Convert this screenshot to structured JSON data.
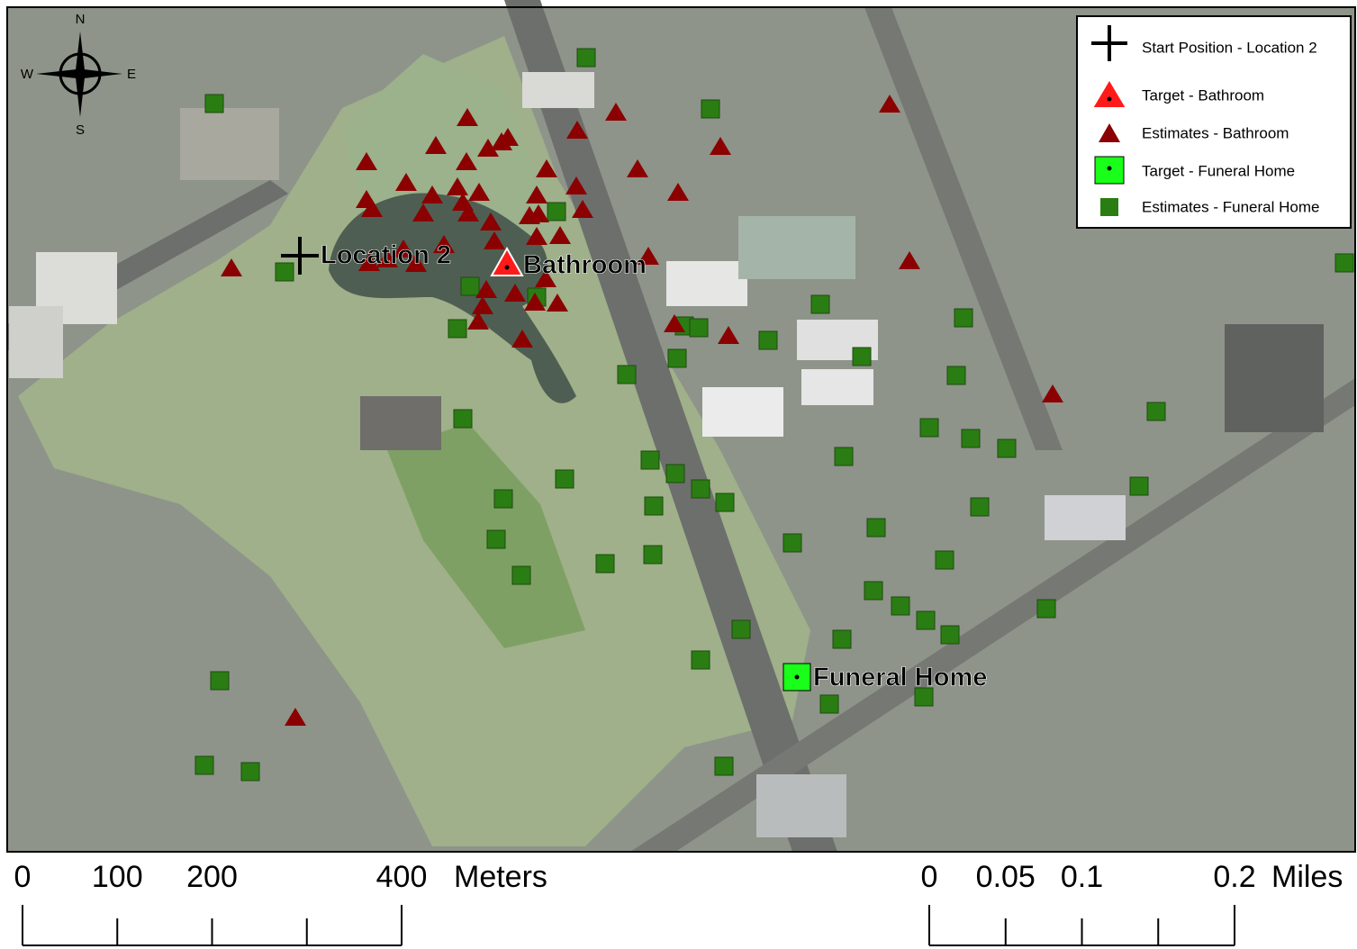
{
  "compass": {
    "north": "N",
    "south": "S",
    "east": "E",
    "west": "W"
  },
  "legend": {
    "items": [
      "Start Position - Location 2",
      "Target - Bathroom",
      "Estimates - Bathroom",
      "Target - Funeral Home",
      "Estimates - Funeral Home"
    ]
  },
  "labels": {
    "start": "Location 2",
    "bathroom": "Bathroom",
    "funeral_home": "Funeral Home"
  },
  "scale_bars": [
    {
      "unit": "Meters",
      "ticks": [
        0,
        100,
        200,
        400
      ]
    },
    {
      "unit": "Miles",
      "ticks": [
        0,
        0.05,
        0.1,
        0.2
      ]
    }
  ]
}
